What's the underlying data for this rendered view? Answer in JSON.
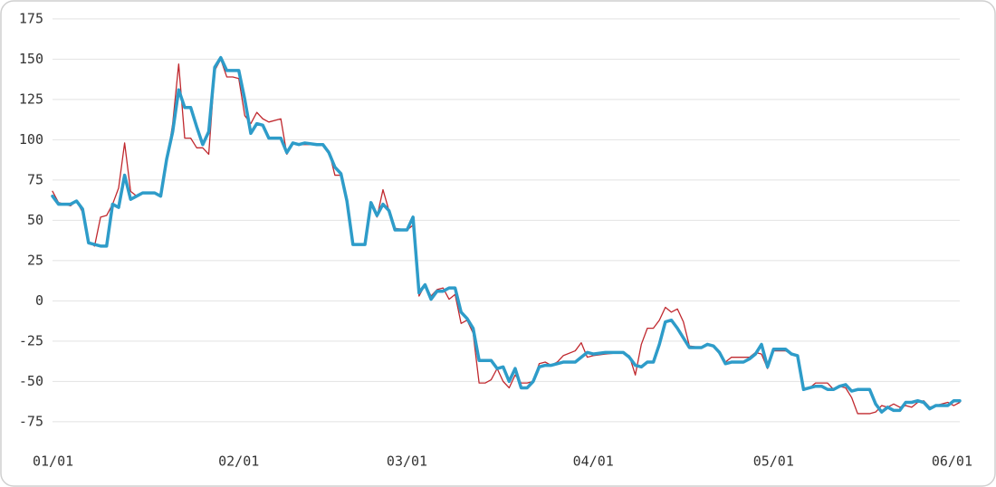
{
  "chart_data": {
    "type": "line",
    "x": [
      "01/01",
      "01/02",
      "01/04",
      "01/05",
      "01/06",
      "01/07",
      "01/08",
      "01/09",
      "01/10",
      "01/11",
      "01/12",
      "01/13",
      "01/14",
      "01/15",
      "01/16",
      "01/18",
      "01/19",
      "01/20",
      "01/21",
      "01/22",
      "01/23",
      "01/24",
      "01/25",
      "01/26",
      "01/27",
      "01/28",
      "01/29",
      "01/30",
      "01/31",
      "02/01",
      "02/02",
      "02/03",
      "02/04",
      "02/05",
      "02/06",
      "02/08",
      "02/09",
      "02/10",
      "02/11",
      "02/12",
      "02/14",
      "02/15",
      "02/16",
      "02/17",
      "02/18",
      "02/19",
      "02/20",
      "02/21",
      "02/22",
      "02/23",
      "02/24",
      "02/25",
      "02/26",
      "02/27",
      "03/01",
      "03/02",
      "03/03",
      "03/04",
      "03/05",
      "03/06",
      "03/07",
      "03/08",
      "03/09",
      "03/10",
      "03/11",
      "03/12",
      "03/13",
      "03/14",
      "03/15",
      "03/16",
      "03/17",
      "03/18",
      "03/19",
      "03/20",
      "03/21",
      "03/22",
      "03/23",
      "03/24",
      "03/25",
      "03/26",
      "03/27",
      "03/29",
      "03/30",
      "03/31",
      "04/01",
      "04/03",
      "04/06",
      "04/07",
      "04/08",
      "04/09",
      "04/10",
      "04/11",
      "04/12",
      "04/13",
      "04/14",
      "04/15",
      "04/16",
      "04/17",
      "04/19",
      "04/20",
      "04/21",
      "04/22",
      "04/23",
      "04/24",
      "04/26",
      "04/27",
      "04/28",
      "04/29",
      "04/30",
      "05/01",
      "05/03",
      "05/04",
      "05/05",
      "05/06",
      "05/07",
      "05/08",
      "05/09",
      "05/10",
      "05/11",
      "05/12",
      "05/13",
      "05/14",
      "05/15",
      "05/17",
      "05/18",
      "05/19",
      "05/20",
      "05/21",
      "05/22",
      "05/23",
      "05/24",
      "05/25",
      "05/26",
      "05/27",
      "05/28",
      "05/30",
      "05/31",
      "06/01"
    ],
    "series": [
      {
        "color": "#c0282e",
        "width": 1.3,
        "values": [
          68,
          61,
          59,
          62,
          55,
          37,
          34,
          52,
          53,
          60,
          70,
          98,
          68,
          65,
          67,
          67,
          65,
          86,
          110,
          147,
          101,
          101,
          95,
          95,
          91,
          143,
          150,
          139,
          139,
          138,
          115,
          110,
          117,
          113,
          111,
          113,
          91,
          98,
          97,
          97,
          97,
          97,
          93,
          78,
          78,
          62,
          35,
          35,
          35,
          60,
          52,
          69,
          56,
          45,
          44,
          47,
          3,
          10,
          3,
          7,
          8,
          1,
          4,
          -14,
          -12,
          -20,
          -51,
          -51,
          -49,
          -42,
          -50,
          -54,
          -46,
          -51,
          -51,
          -50,
          -39,
          -38,
          -40,
          -38,
          -34,
          -31,
          -26,
          -35,
          -34,
          -33,
          -32,
          -34,
          -46,
          -27,
          -17,
          -17,
          -12,
          -4,
          -7,
          -5,
          -13,
          -28,
          -29,
          -27,
          -28,
          -33,
          -38,
          -35,
          -35,
          -35,
          -32,
          -33,
          -42,
          -31,
          -31,
          -33,
          -34,
          -54,
          -54,
          -51,
          -51,
          -51,
          -55,
          -53,
          -54,
          -60,
          -70,
          -70,
          -69,
          -65,
          -66,
          -64,
          -66,
          -65,
          -66,
          -63,
          -62,
          -66,
          -65,
          -63,
          -65,
          -63
        ]
      },
      {
        "color": "#2e9cc9",
        "width": 3.5,
        "values": [
          65,
          60,
          60,
          62,
          57,
          36,
          35,
          34,
          34,
          60,
          58,
          78,
          63,
          65,
          67,
          67,
          65,
          88,
          105,
          131,
          120,
          120,
          108,
          97,
          105,
          145,
          151,
          143,
          143,
          143,
          125,
          104,
          110,
          109,
          101,
          101,
          92,
          98,
          97,
          98,
          97,
          97,
          92,
          83,
          79,
          62,
          35,
          35,
          35,
          61,
          53,
          60,
          56,
          44,
          44,
          52,
          5,
          10,
          1,
          6,
          6,
          8,
          8,
          -7,
          -11,
          -17,
          -37,
          -37,
          -37,
          -42,
          -41,
          -50,
          -42,
          -54,
          -54,
          -50,
          -41,
          -40,
          -40,
          -39,
          -38,
          -38,
          -35,
          -32,
          -33,
          -32,
          -32,
          -35,
          -40,
          -41,
          -38,
          -38,
          -27,
          -13,
          -12,
          -17,
          -23,
          -29,
          -29,
          -27,
          -28,
          -32,
          -39,
          -38,
          -38,
          -36,
          -33,
          -27,
          -41,
          -30,
          -30,
          -33,
          -34,
          -55,
          -54,
          -53,
          -53,
          -55,
          -55,
          -53,
          -52,
          -56,
          -55,
          -55,
          -64,
          -69,
          -66,
          -68,
          -68,
          -63,
          -63,
          -62,
          -63,
          -67,
          -65,
          -65,
          -62,
          -62
        ]
      }
    ],
    "xticks": [
      "01/01",
      "02/01",
      "03/01",
      "04/01",
      "05/01",
      "06/01"
    ],
    "ylim": [
      -88,
      180
    ],
    "yticks": [
      -75,
      -50,
      -25,
      0,
      25,
      50,
      75,
      100,
      125,
      150,
      175
    ],
    "grid": true
  }
}
